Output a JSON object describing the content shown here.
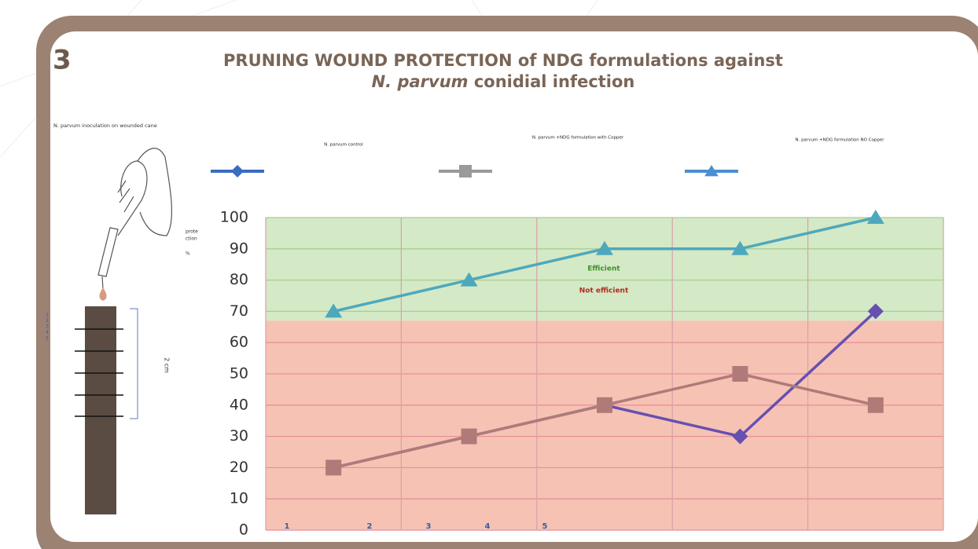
{
  "panel_number": "3",
  "chart_data": {
    "type": "line",
    "title": "PRUNING WOUND PROTECTION of NDG formulations against",
    "subtitle_italic": "N. parvum",
    "subtitle": "conidial infection",
    "ylabel_lines": [
      "prote",
      "ction",
      "%"
    ],
    "categories": [
      null,
      null,
      null,
      null,
      null
    ],
    "bottom_labels": [
      "1",
      "2",
      "3",
      "4",
      "5"
    ],
    "ylim": [
      0,
      100
    ],
    "yticks": [
      0,
      10,
      20,
      30,
      40,
      50,
      60,
      70,
      80,
      90,
      100
    ],
    "grid": true,
    "bands": [
      {
        "from": 67,
        "to": 100,
        "color": "#d4e9c6",
        "label": "Efficient",
        "label_color": "#3f8f2a"
      },
      {
        "from": 0,
        "to": 67,
        "color": "#f6c2b4",
        "label": "Not efficient",
        "label_color": "#b22a1e"
      }
    ],
    "series": [
      {
        "name": "N. parvum control",
        "color": "#6650b0",
        "legend_color": "#3a6cc0",
        "marker": "diamond",
        "values": [
          20,
          30,
          40,
          30,
          70
        ]
      },
      {
        "name": "N. parvum +NDG formulation with Copper",
        "color": "#b07a78",
        "legend_color": "#9a9a9a",
        "marker": "square",
        "values": [
          20,
          30,
          40,
          50,
          40
        ]
      },
      {
        "name": "N. parvum +NDG formulation NO Copper",
        "color": "#4ea8bc",
        "legend_color": "#4a8fd0",
        "marker": "triangle",
        "values": [
          70,
          80,
          90,
          90,
          100
        ]
      }
    ]
  },
  "illustration": {
    "caption": "N. parvum inoculation on wounded cane",
    "scale_marks": [
      "1",
      "2",
      "3",
      "4",
      "5"
    ],
    "length_label": "2 cm"
  }
}
